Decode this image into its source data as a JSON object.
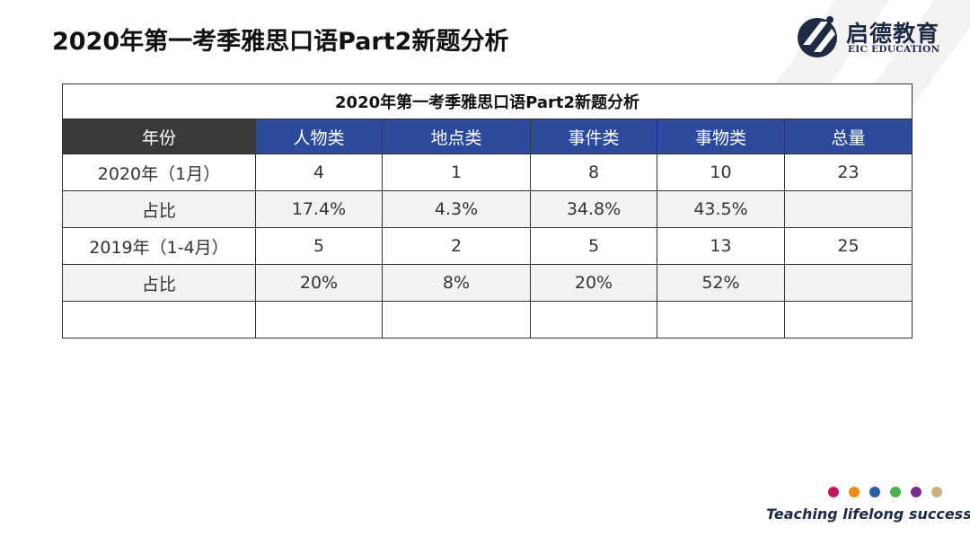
{
  "title": "2020年第一考季雅思口语Part2新题分析",
  "logo": {
    "cn": "启德教育",
    "en": "EIC EDUCATION"
  },
  "table": {
    "caption": "2020年第一考季雅思口语Part2新题分析",
    "headers": [
      "年份",
      "人物类",
      "地点类",
      "事件类",
      "事物类",
      "总量"
    ],
    "rows": [
      [
        "2020年（1月）",
        "4",
        "1",
        "8",
        "10",
        "23"
      ],
      [
        "占比",
        "17.4%",
        "4.3%",
        "34.8%",
        "43.5%",
        ""
      ],
      [
        "2019年（1-4月）",
        "5",
        "2",
        "5",
        "13",
        "25"
      ],
      [
        "占比",
        "20%",
        "8%",
        "20%",
        "52%",
        ""
      ],
      [
        "",
        "",
        "",
        "",
        "",
        ""
      ]
    ]
  },
  "colors": {
    "header_blue": "#2c4a9c",
    "header_dark": "#3a3a3a",
    "brand_navy": "#1f2a44",
    "dots": [
      "#c2185b",
      "#ef8a17",
      "#2e5d9f",
      "#4caf50",
      "#7b2d8e",
      "#c9b27a"
    ]
  },
  "footer": {
    "tagline": "Teaching lifelong success"
  }
}
